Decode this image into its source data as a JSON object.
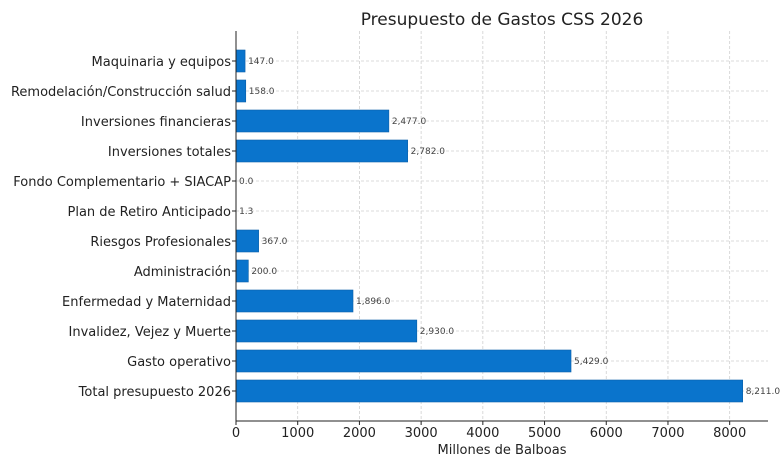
{
  "chart_data": {
    "type": "bar",
    "orientation": "horizontal",
    "title": "Presupuesto de Gastos CSS 2026",
    "xlabel": "Millones de Balboas",
    "ylabel": "",
    "categories": [
      "Total presupuesto 2026",
      "Gasto operativo",
      "Invalidez, Vejez y Muerte",
      "Enfermedad y Maternidad",
      "Administración",
      "Riesgos Profesionales",
      "Plan de Retiro Anticipado",
      "Fondo Complementario + SIACAP",
      "Inversiones totales",
      "Inversiones financieras",
      "Remodelación/Construcción salud",
      "Maquinaria y equipos"
    ],
    "values": [
      8211.0,
      5429.0,
      2930.0,
      1896.0,
      200.0,
      367.0,
      1.3,
      0.0,
      2782.0,
      2477.0,
      158.0,
      147.0
    ],
    "value_labels": [
      "8,211.0",
      "5,429.0",
      "2,930.0",
      "1,896.0",
      "200.0",
      "367.0",
      "1.3",
      "0.0",
      "2,782.0",
      "2,477.0",
      "158.0",
      "147.0"
    ],
    "xlim": [
      0,
      8621
    ],
    "xticks": [
      "0",
      "1000",
      "2000",
      "3000",
      "4000",
      "5000",
      "6000",
      "7000",
      "8000"
    ],
    "grid": true,
    "bar_color": "#0a74cc"
  }
}
